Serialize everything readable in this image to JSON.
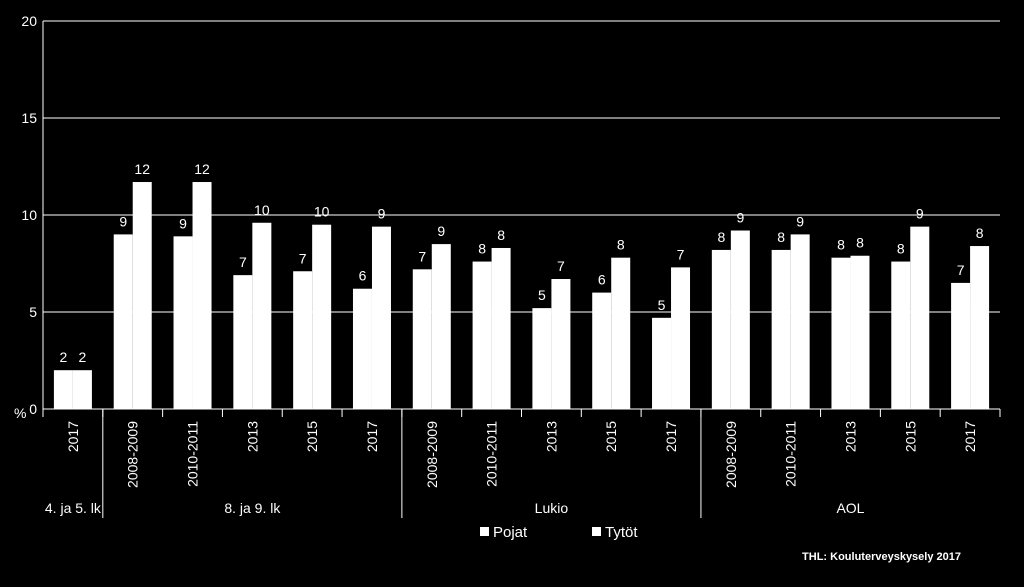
{
  "chart_data": {
    "type": "bar",
    "ylabel": "%",
    "ylim": [
      0,
      20
    ],
    "yticks": [
      0,
      5,
      10,
      15,
      20
    ],
    "grid": true,
    "legend_placement": "bottom-center",
    "series": [
      {
        "name": "Pojat",
        "color": "#ffffff"
      },
      {
        "name": "Tytöt",
        "color": "#ffffff"
      }
    ],
    "groups": [
      {
        "label": "4. ja 5. lk",
        "points": [
          {
            "category": "2017",
            "values": [
              2.0,
              2.0
            ],
            "labels": [
              "2",
              "2"
            ]
          }
        ]
      },
      {
        "label": "8. ja 9. lk",
        "points": [
          {
            "category": "2008-2009",
            "values": [
              9.0,
              11.7
            ],
            "labels": [
              "9",
              "12"
            ]
          },
          {
            "category": "2010-2011",
            "values": [
              8.9,
              11.7
            ],
            "labels": [
              "9",
              "12"
            ]
          },
          {
            "category": "2013",
            "values": [
              6.9,
              9.6
            ],
            "labels": [
              "7",
              "10"
            ]
          },
          {
            "category": "2015",
            "values": [
              7.1,
              9.5
            ],
            "labels": [
              "7",
              "10"
            ]
          },
          {
            "category": "2017",
            "values": [
              6.2,
              9.4
            ],
            "labels": [
              "6",
              "9"
            ]
          }
        ]
      },
      {
        "label": "Lukio",
        "points": [
          {
            "category": "2008-2009",
            "values": [
              7.2,
              8.5
            ],
            "labels": [
              "7",
              "9"
            ]
          },
          {
            "category": "2010-2011",
            "values": [
              7.6,
              8.3
            ],
            "labels": [
              "8",
              "8"
            ]
          },
          {
            "category": "2013",
            "values": [
              5.2,
              6.7
            ],
            "labels": [
              "5",
              "7"
            ]
          },
          {
            "category": "2015",
            "values": [
              6.0,
              7.8
            ],
            "labels": [
              "6",
              "8"
            ]
          },
          {
            "category": "2017",
            "values": [
              4.7,
              7.3
            ],
            "labels": [
              "5",
              "7"
            ]
          }
        ]
      },
      {
        "label": "AOL",
        "points": [
          {
            "category": "2008-2009",
            "values": [
              8.2,
              9.2
            ],
            "labels": [
              "8",
              "9"
            ]
          },
          {
            "category": "2010-2011",
            "values": [
              8.2,
              9.0
            ],
            "labels": [
              "8",
              "9"
            ]
          },
          {
            "category": "2013",
            "values": [
              7.8,
              7.9
            ],
            "labels": [
              "8",
              "8"
            ]
          },
          {
            "category": "2015",
            "values": [
              7.6,
              9.4
            ],
            "labels": [
              "8",
              "9"
            ]
          },
          {
            "category": "2017",
            "values": [
              6.5,
              8.4
            ],
            "labels": [
              "7",
              "8"
            ]
          }
        ]
      }
    ],
    "source": "THL: Kouluterveyskysely 2017"
  }
}
